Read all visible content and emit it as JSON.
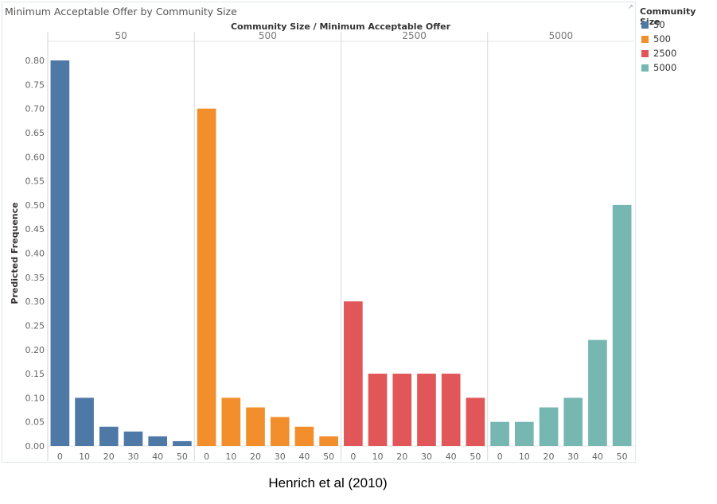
{
  "chart_data": {
    "type": "bar",
    "title": "Minimum Acceptable Offer by Community Size",
    "header_label": "Community Size  /  Minimum Acceptable Offer",
    "ylabel": "Predicted Frequence",
    "ylim": [
      0,
      0.8
    ],
    "yticks": [
      "0.00",
      "0.05",
      "0.10",
      "0.15",
      "0.20",
      "0.25",
      "0.30",
      "0.35",
      "0.40",
      "0.45",
      "0.50",
      "0.55",
      "0.60",
      "0.65",
      "0.70",
      "0.75",
      "0.80"
    ],
    "categories": [
      "0",
      "10",
      "20",
      "30",
      "40",
      "50"
    ],
    "legend_title": "Community Size",
    "series": [
      {
        "name": "50",
        "color": "#4e79a7",
        "values": [
          0.8,
          0.1,
          0.04,
          0.03,
          0.02,
          0.01
        ]
      },
      {
        "name": "500",
        "color": "#f28e2b",
        "values": [
          0.7,
          0.1,
          0.08,
          0.06,
          0.04,
          0.02
        ]
      },
      {
        "name": "2500",
        "color": "#e15759",
        "values": [
          0.3,
          0.15,
          0.15,
          0.15,
          0.15,
          0.1
        ]
      },
      {
        "name": "5000",
        "color": "#76b7b2",
        "values": [
          0.05,
          0.05,
          0.08,
          0.1,
          0.22,
          0.5
        ]
      }
    ]
  },
  "caption": "Henrich et al (2010)"
}
